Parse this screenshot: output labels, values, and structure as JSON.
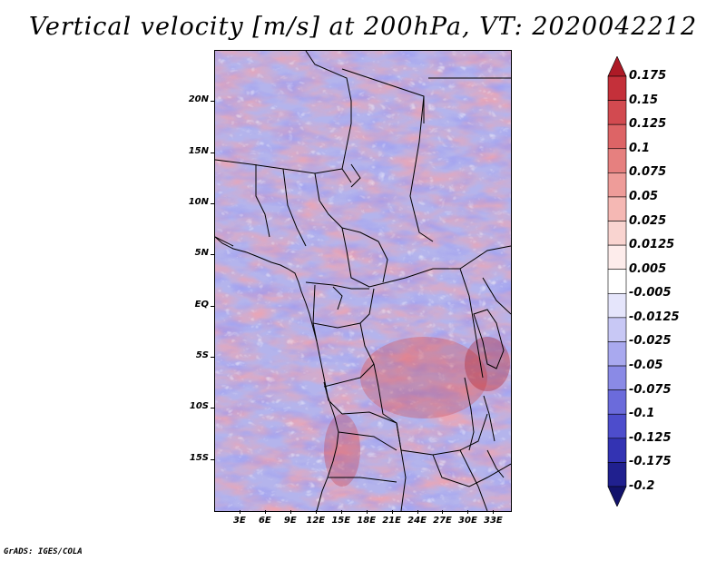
{
  "title": "Vertical velocity [m/s] at 200hPa, VT: 2020042212",
  "footer": "GrADS: IGES/COLA",
  "map": {
    "lat_labels": [
      "20N",
      "15N",
      "10N",
      "5N",
      "EQ",
      "5S",
      "10S",
      "15S"
    ],
    "lon_labels": [
      "3E",
      "6E",
      "9E",
      "12E",
      "15E",
      "18E",
      "21E",
      "24E",
      "27E",
      "30E",
      "33E"
    ],
    "lat_range": [
      -20,
      25
    ],
    "lon_range": [
      0,
      35
    ],
    "variable": "Vertical velocity",
    "units": "m/s",
    "level": "200hPa",
    "valid_time": "2020042212"
  },
  "colorbar": {
    "levels": [
      "0.175",
      "0.15",
      "0.125",
      "0.1",
      "0.075",
      "0.05",
      "0.025",
      "0.0125",
      "0.005",
      "-0.005",
      "-0.0125",
      "-0.025",
      "-0.05",
      "-0.075",
      "-0.1",
      "-0.125",
      "-0.175",
      "-0.2"
    ],
    "colors": [
      "#ad1a26",
      "#c4303a",
      "#d24a50",
      "#dd6466",
      "#e6807f",
      "#ee9c99",
      "#f5b8b4",
      "#f9d4d0",
      "#fdeceb",
      "#ffffff",
      "#e5e5fb",
      "#c8c8f5",
      "#a9a9ef",
      "#8a8ae6",
      "#6b6bdb",
      "#4d4dcc",
      "#3333b3",
      "#20208f",
      "#12126b"
    ]
  }
}
